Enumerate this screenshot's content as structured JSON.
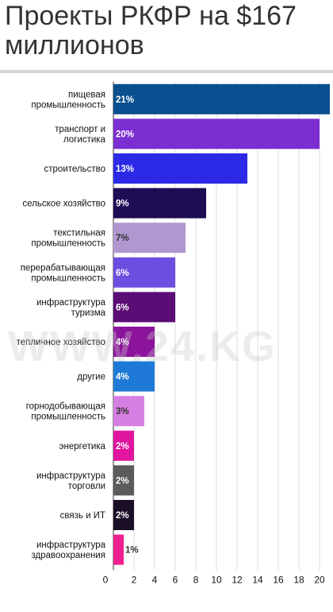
{
  "title": "Проекты РКФР на $167 миллионов",
  "watermark": "WWW.24.KG",
  "chart_data": {
    "type": "bar",
    "orientation": "horizontal",
    "title": "Проекты РКФР на $167 миллионов",
    "xlabel": "",
    "ylabel": "",
    "xlim": [
      0,
      21
    ],
    "xticks": [
      0,
      2,
      4,
      6,
      8,
      10,
      12,
      14,
      16,
      18,
      20
    ],
    "grid": true,
    "categories": [
      [
        "пищевая",
        "промышленность"
      ],
      [
        "транспорт и",
        "логистика"
      ],
      [
        "строительство"
      ],
      [
        "сельское хозяйство"
      ],
      [
        "текстильная",
        "промышленность"
      ],
      [
        "перерабатывающая",
        "промышленность"
      ],
      [
        "инфраструктура",
        "туризма"
      ],
      [
        "тепличное хозяйство"
      ],
      [
        "другие"
      ],
      [
        "горнодобывающая",
        "промышленность"
      ],
      [
        "энергетика"
      ],
      [
        "инфраструктура",
        "торговли"
      ],
      [
        "связь и ИТ"
      ],
      [
        "инфраструктура",
        "здравоохранения"
      ]
    ],
    "values": [
      21,
      20,
      13,
      9,
      7,
      6,
      6,
      4,
      4,
      3,
      2,
      2,
      2,
      1
    ],
    "labels": [
      "21%",
      "20%",
      "13%",
      "9%",
      "7%",
      "6%",
      "6%",
      "4%",
      "4%",
      "3%",
      "2%",
      "2%",
      "2%",
      "1%"
    ],
    "colors": [
      "#0a4f8f",
      "#7b2fd0",
      "#2c2ae6",
      "#1e0c55",
      "#b097cf",
      "#6a4fe0",
      "#5a0d75",
      "#8c139c",
      "#1e7ad6",
      "#d67fe2",
      "#e1159f",
      "#5b5b5b",
      "#1a0f26",
      "#ee1f8e"
    ],
    "label_colors": [
      "#ffffff",
      "#ffffff",
      "#ffffff",
      "#ffffff",
      "#333333",
      "#ffffff",
      "#ffffff",
      "#ffffff",
      "#ffffff",
      "#333333",
      "#ffffff",
      "#ffffff",
      "#ffffff",
      "#333333"
    ]
  }
}
